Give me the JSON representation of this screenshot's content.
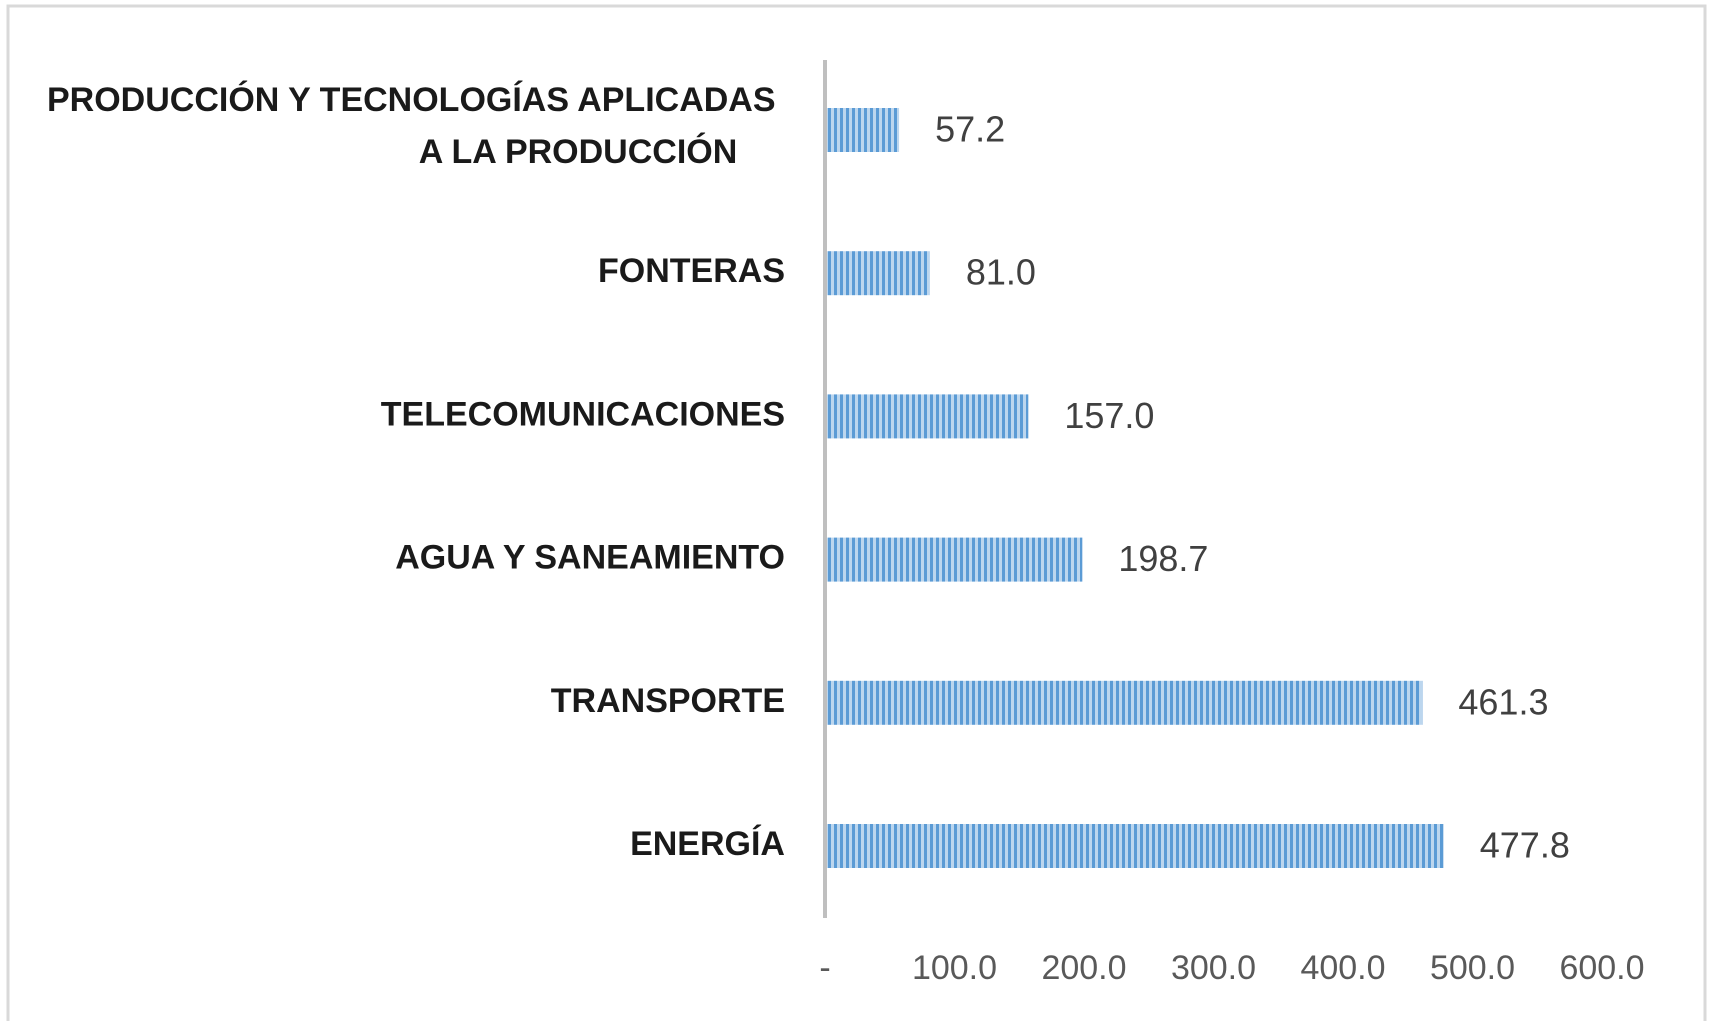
{
  "chart_data": {
    "type": "bar",
    "orientation": "horizontal",
    "categories": [
      "PRODUCCIÓN Y TECNOLOGÍAS APLICADAS A LA PRODUCCIÓN",
      "FONTERAS",
      "TELECOMUNICACIONES",
      "AGUA Y SANEAMIENTO",
      "TRANSPORTE",
      "ENERGÍA"
    ],
    "values": [
      57.2,
      81.0,
      157.0,
      198.7,
      461.3,
      477.8
    ],
    "value_labels": [
      "57.2",
      "81.0",
      "157.0",
      "198.7",
      "461.3",
      "477.8"
    ],
    "color": "#5b9bd5",
    "xlim": [
      0,
      600
    ],
    "xticks": [
      {
        "value": 0,
        "label": "-"
      },
      {
        "value": 100,
        "label": "100.0"
      },
      {
        "value": 200,
        "label": "200.0"
      },
      {
        "value": 300,
        "label": "300.0"
      },
      {
        "value": 400,
        "label": "400.0"
      },
      {
        "value": 500,
        "label": "500.0"
      },
      {
        "value": 600,
        "label": "600.0"
      }
    ],
    "grid": false
  }
}
